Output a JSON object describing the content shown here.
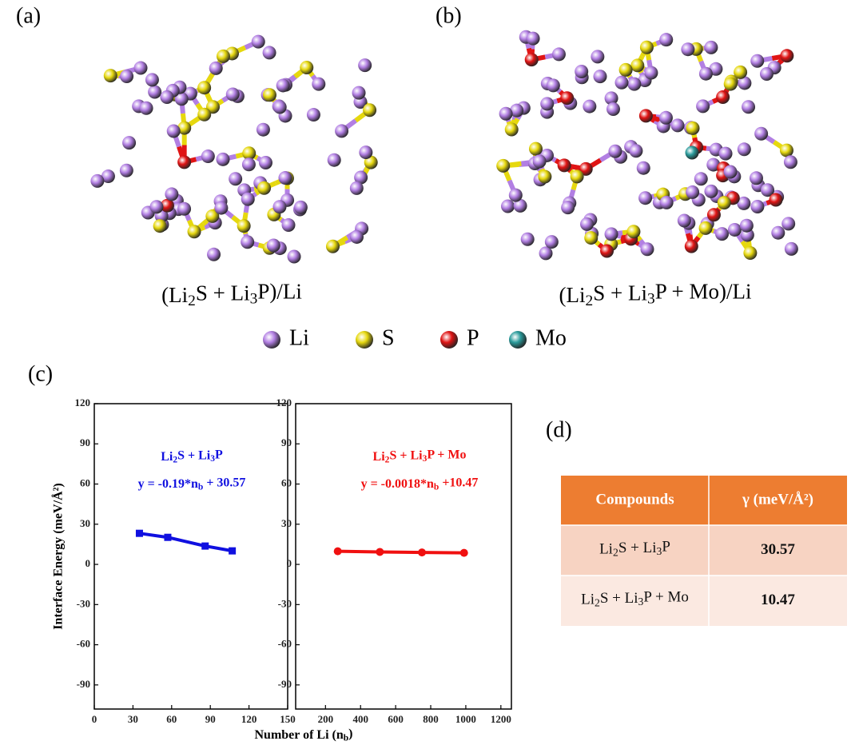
{
  "panel_labels": [
    "(a)",
    "(b)",
    "(c)",
    "(d)"
  ],
  "structures": [
    {
      "caption": [
        "(Li",
        "2",
        "S + Li",
        "3",
        "P)/Li"
      ]
    },
    {
      "caption": [
        "(Li",
        "2",
        "S + Li",
        "3",
        "P + Mo)/Li"
      ]
    }
  ],
  "atoms": [
    {
      "name": "Li",
      "color": "#b27fe3"
    },
    {
      "name": "S",
      "color": "#e6d80e"
    },
    {
      "name": "P",
      "color": "#e01414"
    },
    {
      "name": "Mo",
      "color": "#2a9b9b"
    }
  ],
  "axis_labels": {
    "y": "Interface Energy  (meV/Å²)",
    "x": [
      "Number of Li  (n",
      "b",
      ")"
    ]
  },
  "chart_data": [
    {
      "type": "line",
      "xlim": [
        0,
        150
      ],
      "xticks": [
        0,
        30,
        60,
        90,
        120,
        150
      ],
      "ylim": [
        -108,
        120
      ],
      "yticks": [
        -90,
        -60,
        -30,
        0,
        30,
        60,
        90,
        120
      ],
      "x": [
        35,
        57,
        86,
        107
      ],
      "series": [
        {
          "name": [
            "Li",
            "2",
            "S + Li",
            "3",
            "P"
          ],
          "color": "#1010e0",
          "marker": "square",
          "values": [
            23.2,
            20.2,
            13.7,
            10.1
          ]
        }
      ],
      "annotations": [
        [
          "y = -0.19*n",
          "b",
          " + 30.57"
        ]
      ]
    },
    {
      "type": "line",
      "xlim": [
        30,
        1260
      ],
      "xticks": [
        200,
        400,
        600,
        800,
        1000,
        1200
      ],
      "ylim": [
        -108,
        120
      ],
      "yticks": [
        -90,
        -60,
        -30,
        0,
        30,
        60,
        90,
        120
      ],
      "x": [
        270,
        510,
        750,
        990
      ],
      "series": [
        {
          "name": [
            "Li",
            "2",
            "S + Li",
            "3",
            "P + Mo"
          ],
          "color": "#f01010",
          "marker": "circle",
          "values": [
            9.8,
            9.3,
            8.9,
            8.6
          ]
        }
      ],
      "annotations": [
        [
          "y = -0.0018*n",
          "b",
          " +10.47"
        ]
      ]
    }
  ],
  "table": {
    "header": [
      "Compounds",
      "γ (meV/Å²)"
    ],
    "rows": [
      [
        [
          "Li",
          "2",
          "S + Li",
          "3",
          "P"
        ],
        "30.57"
      ],
      [
        [
          "Li",
          "2",
          "S + Li",
          "3",
          "P + Mo"
        ],
        "10.47"
      ]
    ]
  }
}
